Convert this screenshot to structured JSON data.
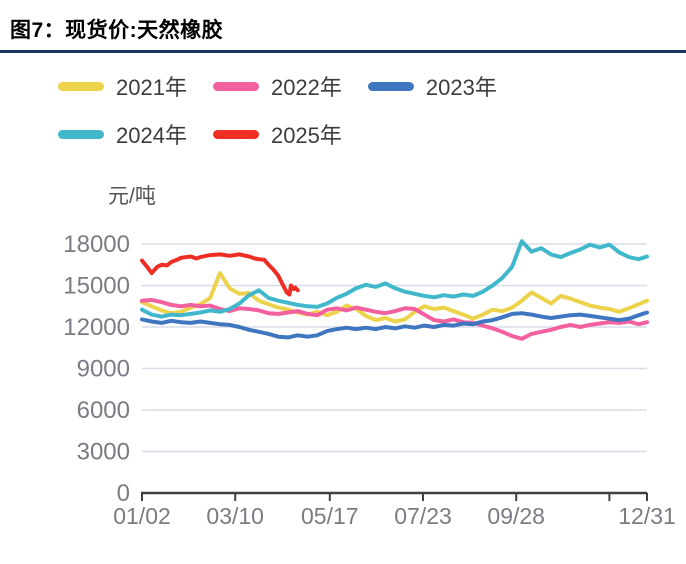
{
  "chart_data": {
    "type": "line",
    "title": "图7：现货价:天然橡胶",
    "unit_label": "元/吨",
    "ylim": [
      0,
      18000
    ],
    "y_ticks": [
      0,
      3000,
      6000,
      9000,
      12000,
      15000,
      18000
    ],
    "day_range": [
      2,
      365
    ],
    "grid": true,
    "legend_position": "top-left",
    "x_ticks": [
      {
        "label": "01/02",
        "day": 2
      },
      {
        "label": "03/10",
        "day": 69
      },
      {
        "label": "05/17",
        "day": 137
      },
      {
        "label": "07/23",
        "day": 204
      },
      {
        "label": "09/28",
        "day": 271
      },
      {
        "label": "",
        "day": 338
      },
      {
        "label": "12/31",
        "day": 365
      }
    ],
    "series": [
      {
        "name": "2021年",
        "color": "#edd24c",
        "days": [
          2,
          9,
          16,
          23,
          30,
          37,
          44,
          51,
          58,
          65,
          72,
          79,
          86,
          93,
          100,
          107,
          114,
          121,
          128,
          135,
          142,
          149,
          156,
          163,
          170,
          177,
          184,
          191,
          198,
          205,
          212,
          219,
          226,
          233,
          240,
          247,
          254,
          261,
          268,
          275,
          282,
          289,
          296,
          303,
          310,
          317,
          324,
          331,
          338,
          345,
          352,
          359,
          365
        ],
        "values": [
          13800,
          13500,
          13200,
          13000,
          13100,
          13400,
          13650,
          14100,
          15900,
          14800,
          14400,
          14450,
          13900,
          13650,
          13400,
          13250,
          13050,
          12900,
          13100,
          12850,
          13100,
          13550,
          13300,
          12800,
          12500,
          12650,
          12400,
          12550,
          13100,
          13500,
          13300,
          13400,
          13150,
          12900,
          12600,
          12900,
          13250,
          13150,
          13400,
          13900,
          14500,
          14100,
          13700,
          14250,
          14050,
          13800,
          13550,
          13400,
          13300,
          13100,
          13350,
          13650,
          13900
        ]
      },
      {
        "name": "2022年",
        "color": "#f2609f",
        "days": [
          2,
          9,
          16,
          23,
          30,
          37,
          44,
          51,
          58,
          65,
          72,
          79,
          86,
          93,
          100,
          107,
          114,
          121,
          128,
          135,
          142,
          149,
          156,
          163,
          170,
          177,
          184,
          191,
          198,
          205,
          212,
          219,
          226,
          233,
          240,
          247,
          254,
          261,
          268,
          275,
          282,
          289,
          296,
          303,
          310,
          317,
          324,
          331,
          338,
          345,
          352,
          359,
          365
        ],
        "values": [
          13900,
          13950,
          13800,
          13600,
          13500,
          13600,
          13500,
          13550,
          13300,
          13150,
          13350,
          13300,
          13200,
          13000,
          12950,
          13050,
          13150,
          12950,
          12850,
          13250,
          13350,
          13200,
          13400,
          13250,
          13100,
          13000,
          13150,
          13350,
          13300,
          12900,
          12500,
          12400,
          12550,
          12350,
          12300,
          12100,
          11900,
          11650,
          11350,
          11150,
          11500,
          11650,
          11800,
          12000,
          12150,
          12000,
          12150,
          12250,
          12350,
          12300,
          12400,
          12200,
          12350
        ]
      },
      {
        "name": "2023年",
        "color": "#3f76c0",
        "days": [
          2,
          9,
          16,
          23,
          30,
          37,
          44,
          51,
          58,
          65,
          72,
          79,
          86,
          93,
          100,
          107,
          114,
          121,
          128,
          135,
          142,
          149,
          156,
          163,
          170,
          177,
          184,
          191,
          198,
          205,
          212,
          219,
          226,
          233,
          240,
          247,
          254,
          261,
          268,
          275,
          282,
          289,
          296,
          303,
          310,
          317,
          324,
          331,
          338,
          345,
          352,
          359,
          365
        ],
        "values": [
          12550,
          12400,
          12300,
          12450,
          12350,
          12300,
          12400,
          12300,
          12200,
          12150,
          12000,
          11800,
          11650,
          11500,
          11300,
          11250,
          11400,
          11300,
          11400,
          11700,
          11850,
          11950,
          11850,
          11950,
          11850,
          12000,
          11900,
          12050,
          11950,
          12100,
          12000,
          12150,
          12100,
          12250,
          12200,
          12400,
          12500,
          12700,
          12950,
          13000,
          12900,
          12750,
          12650,
          12750,
          12850,
          12900,
          12800,
          12700,
          12600,
          12500,
          12600,
          12850,
          13050
        ]
      },
      {
        "name": "2024年",
        "color": "#41b7cb",
        "days": [
          2,
          9,
          16,
          23,
          30,
          37,
          44,
          51,
          58,
          65,
          72,
          79,
          86,
          93,
          100,
          107,
          114,
          121,
          128,
          135,
          142,
          149,
          156,
          163,
          170,
          177,
          184,
          191,
          198,
          205,
          212,
          219,
          226,
          233,
          240,
          247,
          254,
          261,
          268,
          275,
          282,
          289,
          296,
          303,
          310,
          317,
          324,
          331,
          338,
          345,
          352,
          359,
          365
        ],
        "values": [
          13250,
          12900,
          12750,
          12900,
          12850,
          12950,
          13050,
          13200,
          13100,
          13300,
          13700,
          14300,
          14650,
          14100,
          13900,
          13750,
          13600,
          13500,
          13450,
          13700,
          14100,
          14400,
          14800,
          15050,
          14900,
          15150,
          14800,
          14550,
          14400,
          14250,
          14150,
          14300,
          14200,
          14350,
          14250,
          14550,
          15000,
          15550,
          16350,
          18200,
          17450,
          17700,
          17250,
          17050,
          17350,
          17600,
          17950,
          17750,
          17950,
          17400,
          17050,
          16900,
          17100
        ]
      },
      {
        "name": "2025年",
        "color": "#ee2e24",
        "days": [
          2,
          6,
          9,
          13,
          16,
          20,
          23,
          27,
          30,
          37,
          41,
          44,
          51,
          58,
          65,
          72,
          79,
          83,
          86,
          90,
          93,
          96,
          100,
          103,
          106,
          108,
          109,
          111,
          112,
          114
        ],
        "values": [
          16800,
          16300,
          15900,
          16350,
          16500,
          16450,
          16700,
          16850,
          17000,
          17100,
          16950,
          17050,
          17200,
          17250,
          17150,
          17250,
          17100,
          16950,
          16900,
          16850,
          16500,
          16200,
          15700,
          15100,
          14500,
          14350,
          15000,
          14750,
          14850,
          14650
        ]
      }
    ]
  }
}
